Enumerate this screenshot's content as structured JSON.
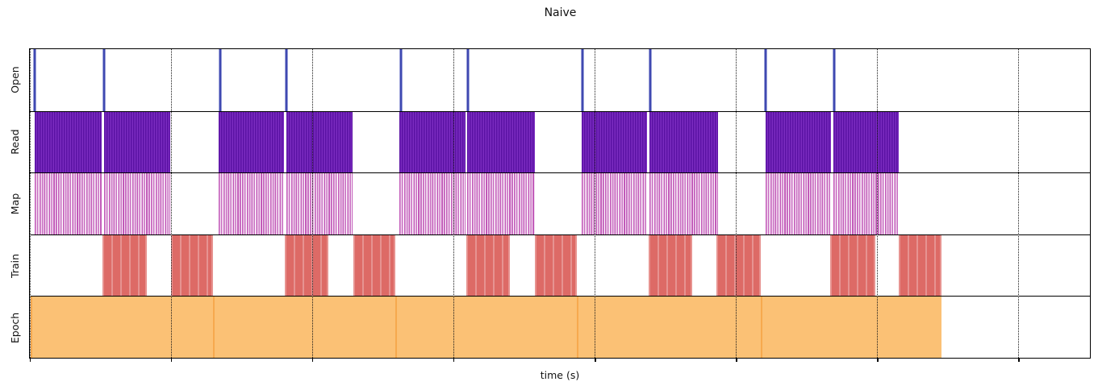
{
  "figure": {
    "title": "Naive",
    "xlabel": "time (s)"
  },
  "chart_data": {
    "type": "broken_barh_timeline",
    "title": "Naive",
    "xlabel": "time (s)",
    "x_axis": {
      "range": [
        0,
        1316
      ],
      "ticks": [
        0,
        175.3,
        350.6,
        525.9,
        701.2,
        876.5,
        1051.8,
        1227.1
      ],
      "tick_labels": [],
      "note": "x-axis tick marks are unlabeled in the figure; interval values are estimated in relative axis units",
      "grid_style": "dotted"
    },
    "legend": "none",
    "tracks": [
      {
        "id": "open",
        "label": "Open",
        "color": "#3f49b1",
        "style": "spikes",
        "intervals": [
          [
            4,
            8
          ],
          [
            90.5,
            94.5
          ],
          [
            234,
            238
          ],
          [
            316,
            320
          ],
          [
            459,
            463
          ],
          [
            541.5,
            545.5
          ],
          [
            684.5,
            688.5
          ],
          [
            768,
            772
          ],
          [
            911,
            915
          ],
          [
            997,
            1001
          ]
        ]
      },
      {
        "id": "read",
        "label": "Read",
        "color": "#6a1db1",
        "style": "dense-striped",
        "intervals": [
          [
            6.5,
            89.5
          ],
          [
            92.5,
            174
          ],
          [
            234,
            315.5
          ],
          [
            318,
            401
          ],
          [
            459,
            540.5
          ],
          [
            543,
            626.5
          ],
          [
            685,
            766.5
          ],
          [
            769.5,
            854
          ],
          [
            913,
            995
          ],
          [
            998,
            1079
          ]
        ]
      },
      {
        "id": "map",
        "label": "Map",
        "color": "#c25ab9",
        "style": "dense-striped-light",
        "intervals": [
          [
            6.5,
            89.5
          ],
          [
            92.5,
            174
          ],
          [
            234,
            315.5
          ],
          [
            318,
            401
          ],
          [
            459,
            540.5
          ],
          [
            543,
            626.5
          ],
          [
            685,
            766.5
          ],
          [
            769.5,
            854
          ],
          [
            913,
            995
          ],
          [
            998,
            1079
          ]
        ]
      },
      {
        "id": "train",
        "label": "Train",
        "color": "#dd6a66",
        "style": "block",
        "intervals": [
          [
            90.5,
            145
          ],
          [
            175,
            227.5
          ],
          [
            316,
            370.5
          ],
          [
            401.5,
            453.5
          ],
          [
            541.5,
            596
          ],
          [
            626.5,
            679.5
          ],
          [
            768,
            822
          ],
          [
            852.5,
            907.5
          ],
          [
            994,
            1049.5
          ],
          [
            1079,
            1132
          ]
        ]
      },
      {
        "id": "epoch",
        "label": "Epoch",
        "color": "#fbc175",
        "divider_color": "#f6a94e",
        "style": "block",
        "intervals": [
          [
            1,
            227.5
          ],
          [
            227.5,
            453.5
          ],
          [
            453.5,
            679.5
          ],
          [
            679.5,
            907.5
          ],
          [
            907.5,
            1132
          ]
        ]
      }
    ]
  }
}
